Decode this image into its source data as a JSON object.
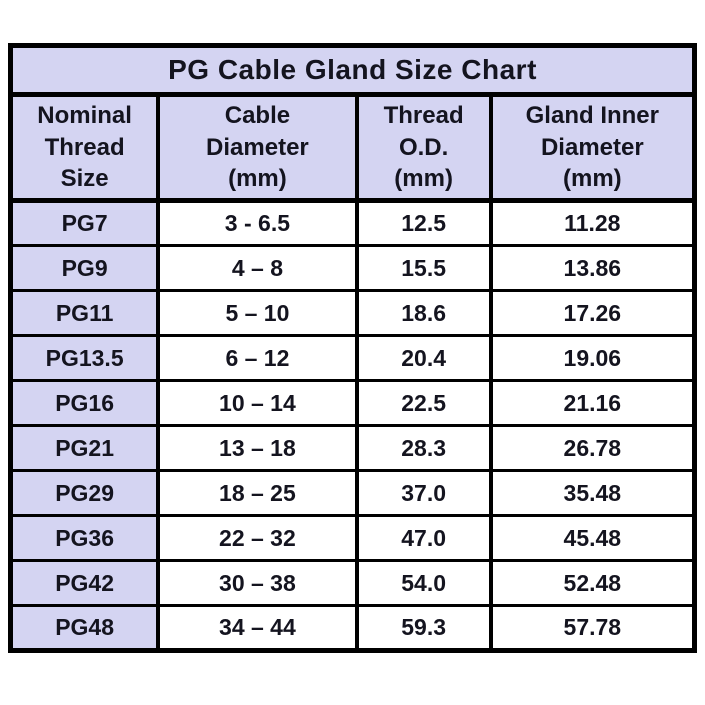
{
  "title": "PG Cable Gland Size Chart",
  "colors": {
    "header_bg": "#d4d4f2",
    "row_label_bg": "#d4d4f2",
    "cell_bg": "#ffffff",
    "border": "#000000",
    "text": "#14141f",
    "page_bg": "#ffffff"
  },
  "display": {
    "headers": [
      "Nominal\nThread\nSize",
      "Cable\nDiameter\n(mm)",
      "Thread\nO.D.\n(mm)",
      "Gland Inner\nDiameter\n(mm)"
    ]
  },
  "chart_data": {
    "type": "table",
    "title": "PG Cable Gland Size Chart",
    "columns": [
      "Nominal Thread Size",
      "Cable Diameter (mm)",
      "Thread O.D. (mm)",
      "Gland Inner Diameter (mm)"
    ],
    "rows": [
      [
        "PG7",
        "3 - 6.5",
        "12.5",
        "11.28"
      ],
      [
        "PG9",
        "4 – 8",
        "15.5",
        "13.86"
      ],
      [
        "PG11",
        "5 – 10",
        "18.6",
        "17.26"
      ],
      [
        "PG13.5",
        "6 – 12",
        "20.4",
        "19.06"
      ],
      [
        "PG16",
        "10 – 14",
        "22.5",
        "21.16"
      ],
      [
        "PG21",
        "13 – 18",
        "28.3",
        "26.78"
      ],
      [
        "PG29",
        "18 – 25",
        "37.0",
        "35.48"
      ],
      [
        "PG36",
        "22 – 32",
        "47.0",
        "45.48"
      ],
      [
        "PG42",
        "30 – 38",
        "54.0",
        "52.48"
      ],
      [
        "PG48",
        "34 – 44",
        "59.3",
        "57.78"
      ]
    ]
  }
}
